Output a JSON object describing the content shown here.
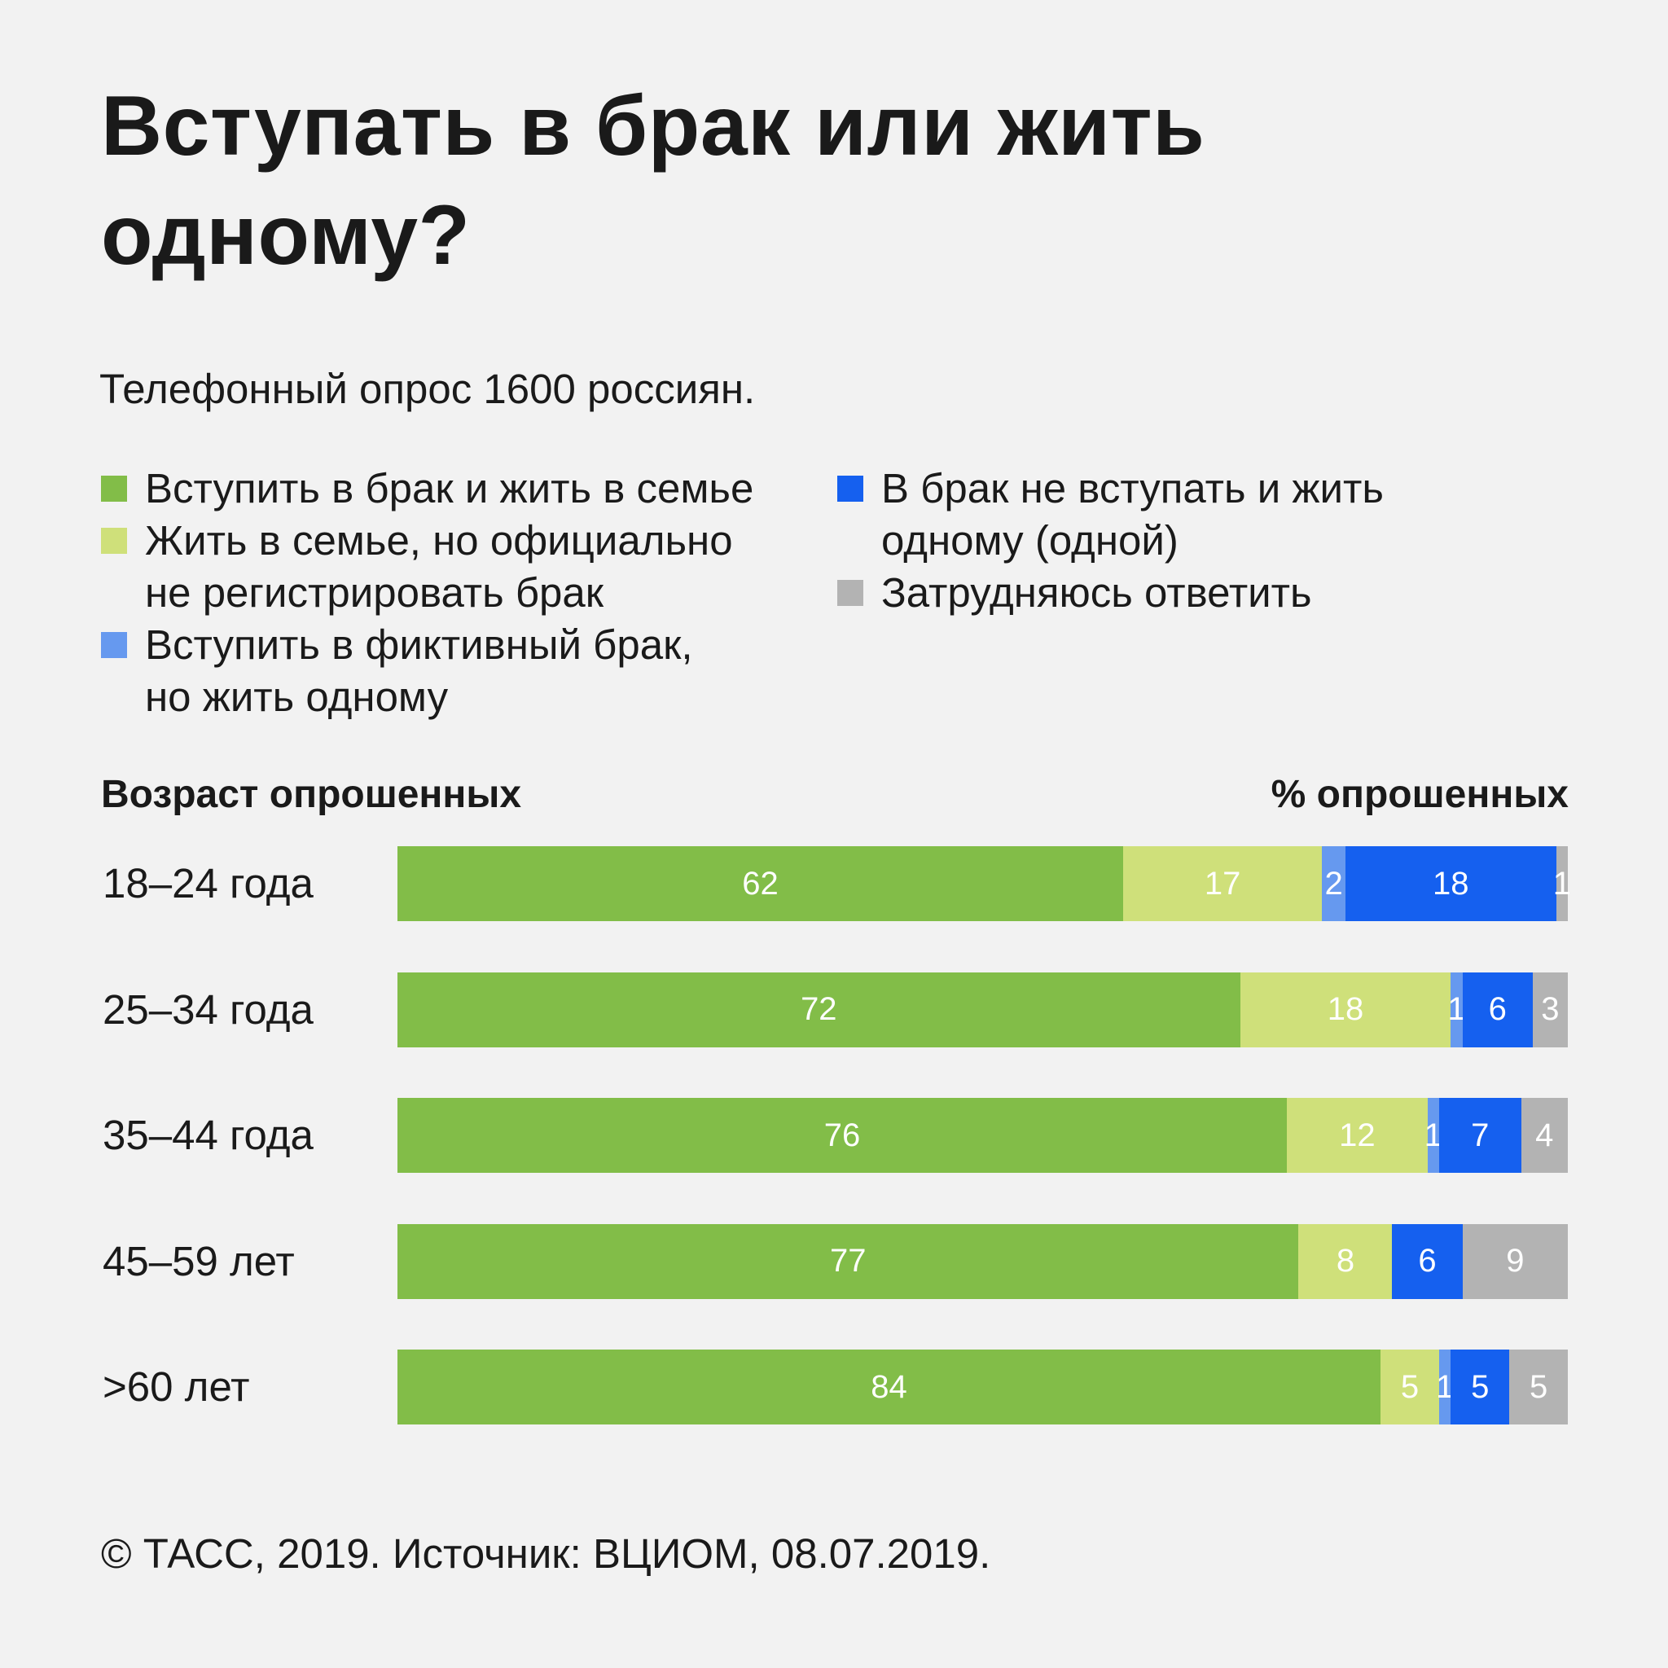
{
  "title": "Вступать в брак или жить\nодному?",
  "subtitle": "Телефонный опрос 1600 россиян.",
  "legend": [
    {
      "label": "Вступить в брак и жить в семье",
      "color": "#82bd48"
    },
    {
      "label": "Жить в семье, но официально\nне регистрировать брак",
      "color": "#cfe07a"
    },
    {
      "label": "Вступить в фиктивный брак,\nно жить одному",
      "color": "#6699ef"
    },
    {
      "label": "В брак не вступать и жить\nодному (одной)",
      "color": "#1560ef"
    },
    {
      "label": "Затрудняюсь ответить",
      "color": "#b3b3b3"
    }
  ],
  "axis": {
    "left_label": "Возраст опрошенных",
    "right_label": "% опрошенных"
  },
  "chart_data": {
    "type": "bar",
    "orientation": "horizontal",
    "stacked": true,
    "xlim": [
      0,
      100
    ],
    "categories": [
      "18–24 года",
      "25–34 года",
      "35–44 года",
      "45–59 лет",
      ">60 лет"
    ],
    "series": [
      {
        "name": "Вступить в брак и жить в семье",
        "values": [
          62,
          72,
          76,
          77,
          84
        ]
      },
      {
        "name": "Жить в семье, но официально не регистрировать брак",
        "values": [
          17,
          18,
          12,
          8,
          5
        ]
      },
      {
        "name": "Вступить в фиктивный брак, но жить одному",
        "values": [
          2,
          1,
          1,
          0,
          1
        ]
      },
      {
        "name": "В брак не вступать и жить одному (одной)",
        "values": [
          18,
          6,
          7,
          6,
          5
        ]
      },
      {
        "name": "Затрудняюсь ответить",
        "values": [
          1,
          3,
          4,
          9,
          5
        ]
      }
    ],
    "legend_position": "top",
    "grid": false
  },
  "footer": "© ТАСС, 2019. Источник: ВЦИОМ, 08.07.2019."
}
